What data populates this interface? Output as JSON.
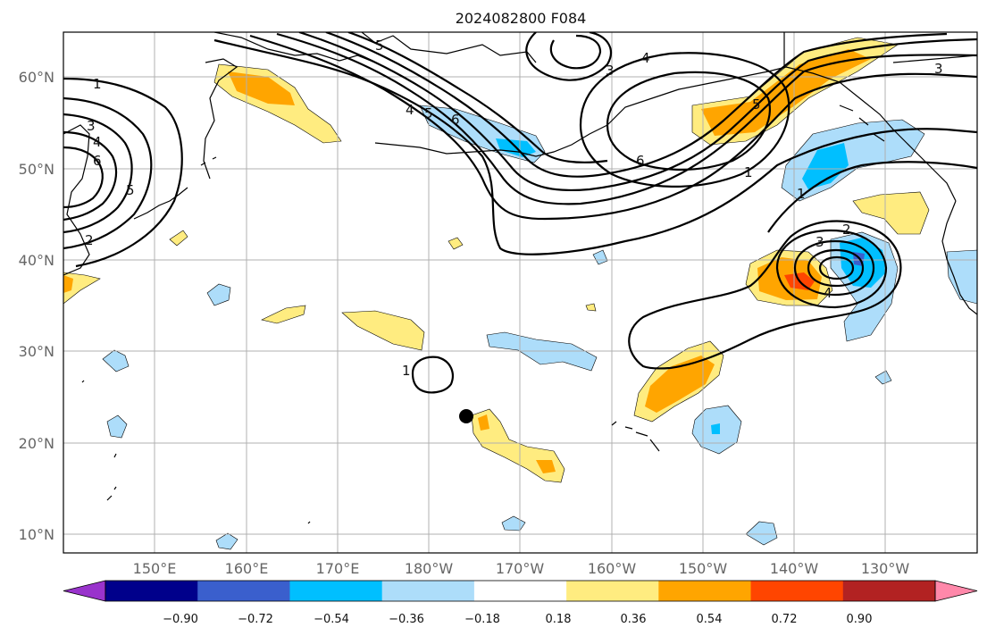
{
  "figure": {
    "title": "2024082800 F084"
  },
  "map": {
    "lat_labels": [
      "60°N",
      "50°N",
      "40°N",
      "30°N",
      "20°N",
      "10°N"
    ],
    "lon_labels": [
      "150°E",
      "160°E",
      "170°E",
      "180°W",
      "170°W",
      "160°W",
      "150°W",
      "140°W",
      "130°W"
    ],
    "lon_range": [
      140,
      240
    ],
    "lat_range": [
      8,
      65
    ],
    "contour_labels": [
      {
        "id": "c1-west",
        "text": "1"
      },
      {
        "id": "c3-west",
        "text": "3"
      },
      {
        "id": "c4-west",
        "text": "4"
      },
      {
        "id": "c6-west",
        "text": "6"
      },
      {
        "id": "c2-west",
        "text": "2"
      },
      {
        "id": "c5-west",
        "text": "5"
      },
      {
        "id": "c4-mid",
        "text": "4"
      },
      {
        "id": "c5-mid",
        "text": "5"
      },
      {
        "id": "c6-mid",
        "text": "6"
      },
      {
        "id": "c5-north",
        "text": "5"
      },
      {
        "id": "c3-north",
        "text": "3"
      },
      {
        "id": "c4-north",
        "text": "4"
      },
      {
        "id": "c6-east",
        "text": "6"
      },
      {
        "id": "c5-east",
        "text": "5"
      },
      {
        "id": "c1-east",
        "text": "1"
      },
      {
        "id": "c1-east2",
        "text": "1"
      },
      {
        "id": "c3-ne",
        "text": "3"
      },
      {
        "id": "c2-low",
        "text": "2"
      },
      {
        "id": "c3-low",
        "text": "3"
      },
      {
        "id": "c4-low",
        "text": "4"
      },
      {
        "id": "c1-south",
        "text": "1"
      }
    ],
    "colors": {
      "orange": "#FFA500",
      "light_yellow": "#FFEC80",
      "red_orange": "#FF4500",
      "light_blue": "#ADDDFA",
      "deep_sky": "#00BFFF",
      "blue": "#3A5FCD"
    }
  },
  "colorbar": {
    "tick_labels": [
      "−0.90",
      "−0.72",
      "−0.54",
      "−0.36",
      "−0.18",
      "0.18",
      "0.36",
      "0.54",
      "0.72",
      "0.90"
    ],
    "colors": [
      "#9933CC",
      "#00008B",
      "#3A5FCD",
      "#00BFFF",
      "#ADDDFA",
      "#FFFFFF",
      "#FFEC80",
      "#FFA500",
      "#FF4500",
      "#B22222",
      "#FF88AA"
    ]
  }
}
